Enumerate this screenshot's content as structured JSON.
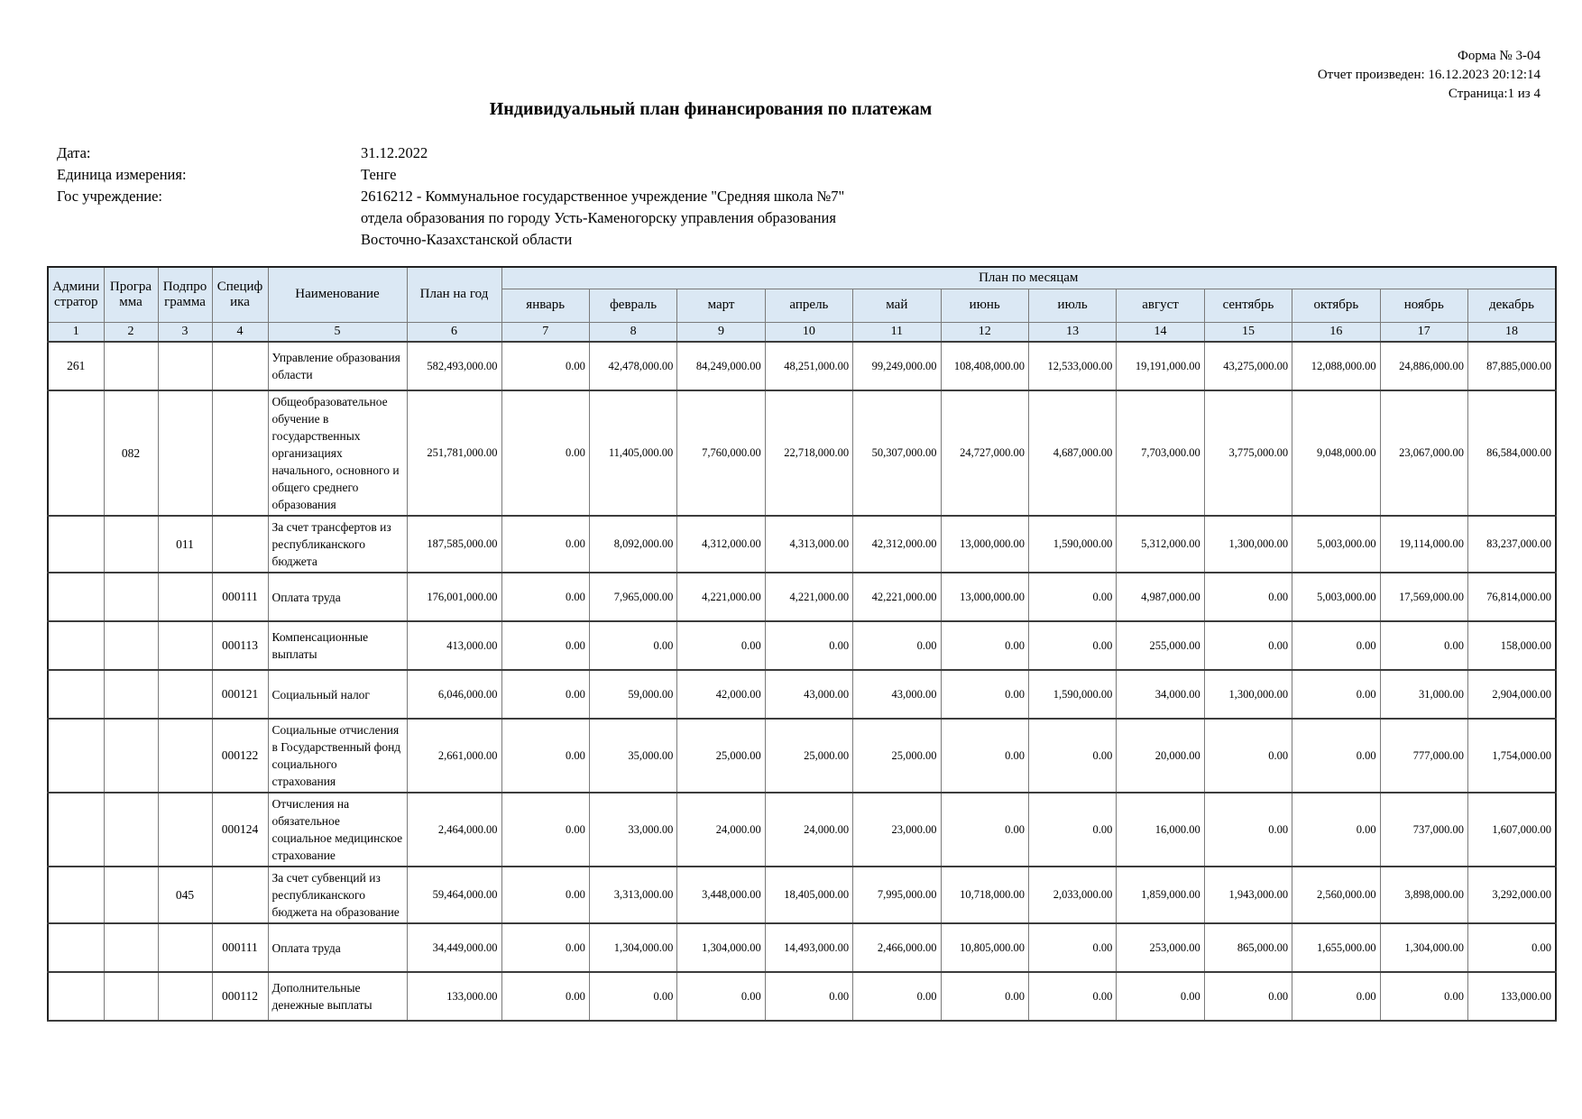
{
  "corner": {
    "form_label": "Форма № 3-04",
    "report_generated": "Отчет произведен: 16.12.2023 20:12:14",
    "page_label": "Страница:1 из 4"
  },
  "title": "Индивидуальный план финансирования по платежам",
  "meta": {
    "date_label": "Дата:",
    "date_value": "31.12.2022",
    "unit_label": "Единица измерения:",
    "unit_value": "Тенге",
    "institution_label": "Гос учреждение:",
    "institution_lines": [
      "2616212 - Коммунальное государственное учреждение \"Средняя школа №7\"",
      "отдела образования по городу Усть-Каменогорску управления образования",
      "Восточно-Казахстанской области"
    ]
  },
  "colors": {
    "header_bg": "#dbe8f4"
  },
  "table": {
    "header": {
      "administrator": "Администратор",
      "program": "Программа",
      "subprogram": "Подпрограмма",
      "specifics": "Специфика",
      "name": "Наименование",
      "plan_year": "План на год",
      "months_group": "План по месяцам",
      "months": [
        "январь",
        "февраль",
        "март",
        "апрель",
        "май",
        "июнь",
        "июль",
        "август",
        "сентябрь",
        "октябрь",
        "ноябрь",
        "декабрь"
      ],
      "column_numbers": [
        "1",
        "2",
        "3",
        "4",
        "5",
        "6",
        "7",
        "8",
        "9",
        "10",
        "11",
        "12",
        "13",
        "14",
        "15",
        "16",
        "17",
        "18"
      ]
    },
    "rows": [
      {
        "administrator": "261",
        "program": "",
        "subprogram": "",
        "specifics": "",
        "name": "Управление образования области",
        "plan_year": "582,493,000.00",
        "months": [
          "0.00",
          "42,478,000.00",
          "84,249,000.00",
          "48,251,000.00",
          "99,249,000.00",
          "108,408,000.00",
          "12,533,000.00",
          "19,191,000.00",
          "43,275,000.00",
          "12,088,000.00",
          "24,886,000.00",
          "87,885,000.00"
        ]
      },
      {
        "administrator": "",
        "program": "082",
        "subprogram": "",
        "specifics": "",
        "name": "Общеобразовательное обучение в государственных организациях начального, основного и общего среднего образования",
        "plan_year": "251,781,000.00",
        "months": [
          "0.00",
          "11,405,000.00",
          "7,760,000.00",
          "22,718,000.00",
          "50,307,000.00",
          "24,727,000.00",
          "4,687,000.00",
          "7,703,000.00",
          "3,775,000.00",
          "9,048,000.00",
          "23,067,000.00",
          "86,584,000.00"
        ]
      },
      {
        "administrator": "",
        "program": "",
        "subprogram": "011",
        "specifics": "",
        "name": "За счет трансфертов из республиканского бюджета",
        "plan_year": "187,585,000.00",
        "months": [
          "0.00",
          "8,092,000.00",
          "4,312,000.00",
          "4,313,000.00",
          "42,312,000.00",
          "13,000,000.00",
          "1,590,000.00",
          "5,312,000.00",
          "1,300,000.00",
          "5,003,000.00",
          "19,114,000.00",
          "83,237,000.00"
        ]
      },
      {
        "administrator": "",
        "program": "",
        "subprogram": "",
        "specifics": "000111",
        "name": "Оплата труда",
        "plan_year": "176,001,000.00",
        "months": [
          "0.00",
          "7,965,000.00",
          "4,221,000.00",
          "4,221,000.00",
          "42,221,000.00",
          "13,000,000.00",
          "0.00",
          "4,987,000.00",
          "0.00",
          "5,003,000.00",
          "17,569,000.00",
          "76,814,000.00"
        ]
      },
      {
        "administrator": "",
        "program": "",
        "subprogram": "",
        "specifics": "000113",
        "name": "Компенсационные выплаты",
        "plan_year": "413,000.00",
        "months": [
          "0.00",
          "0.00",
          "0.00",
          "0.00",
          "0.00",
          "0.00",
          "0.00",
          "255,000.00",
          "0.00",
          "0.00",
          "0.00",
          "158,000.00"
        ]
      },
      {
        "administrator": "",
        "program": "",
        "subprogram": "",
        "specifics": "000121",
        "name": "Социальный налог",
        "plan_year": "6,046,000.00",
        "months": [
          "0.00",
          "59,000.00",
          "42,000.00",
          "43,000.00",
          "43,000.00",
          "0.00",
          "1,590,000.00",
          "34,000.00",
          "1,300,000.00",
          "0.00",
          "31,000.00",
          "2,904,000.00"
        ]
      },
      {
        "administrator": "",
        "program": "",
        "subprogram": "",
        "specifics": "000122",
        "name": "Социальные отчисления в Государственный фонд социального страхования",
        "plan_year": "2,661,000.00",
        "months": [
          "0.00",
          "35,000.00",
          "25,000.00",
          "25,000.00",
          "25,000.00",
          "0.00",
          "0.00",
          "20,000.00",
          "0.00",
          "0.00",
          "777,000.00",
          "1,754,000.00"
        ]
      },
      {
        "administrator": "",
        "program": "",
        "subprogram": "",
        "specifics": "000124",
        "name": "Отчисления на обязательное социальное медицинское страхование",
        "plan_year": "2,464,000.00",
        "months": [
          "0.00",
          "33,000.00",
          "24,000.00",
          "24,000.00",
          "23,000.00",
          "0.00",
          "0.00",
          "16,000.00",
          "0.00",
          "0.00",
          "737,000.00",
          "1,607,000.00"
        ]
      },
      {
        "administrator": "",
        "program": "",
        "subprogram": "045",
        "specifics": "",
        "name": "За счет субвенций из республиканского бюджета на образование",
        "plan_year": "59,464,000.00",
        "months": [
          "0.00",
          "3,313,000.00",
          "3,448,000.00",
          "18,405,000.00",
          "7,995,000.00",
          "10,718,000.00",
          "2,033,000.00",
          "1,859,000.00",
          "1,943,000.00",
          "2,560,000.00",
          "3,898,000.00",
          "3,292,000.00"
        ]
      },
      {
        "administrator": "",
        "program": "",
        "subprogram": "",
        "specifics": "000111",
        "name": "Оплата труда",
        "plan_year": "34,449,000.00",
        "months": [
          "0.00",
          "1,304,000.00",
          "1,304,000.00",
          "14,493,000.00",
          "2,466,000.00",
          "10,805,000.00",
          "0.00",
          "253,000.00",
          "865,000.00",
          "1,655,000.00",
          "1,304,000.00",
          "0.00"
        ]
      },
      {
        "administrator": "",
        "program": "",
        "subprogram": "",
        "specifics": "000112",
        "name": "Дополнительные денежные выплаты",
        "plan_year": "133,000.00",
        "months": [
          "0.00",
          "0.00",
          "0.00",
          "0.00",
          "0.00",
          "0.00",
          "0.00",
          "0.00",
          "0.00",
          "0.00",
          "0.00",
          "133,000.00"
        ]
      }
    ]
  }
}
